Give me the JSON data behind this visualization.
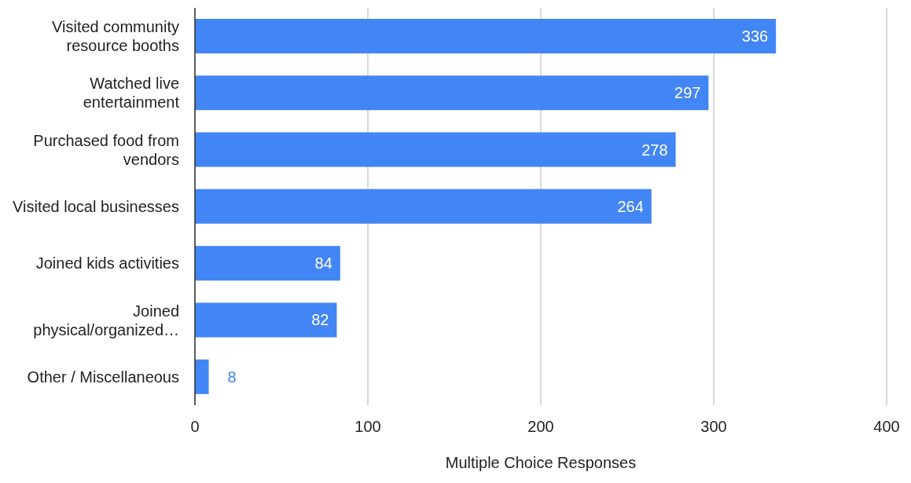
{
  "chart_data": {
    "type": "bar",
    "orientation": "horizontal",
    "categories": [
      "Visited community resource booths",
      "Watched live entertainment",
      "Purchased food from vendors",
      "Visited local businesses",
      "Joined kids activities",
      "Joined physical/organized…",
      "Other / Miscellaneous"
    ],
    "values": [
      336,
      297,
      278,
      264,
      84,
      82,
      8
    ],
    "color": "#4285f4",
    "xlabel": "Multiple Choice Responses",
    "xlim": [
      0,
      400
    ],
    "xticks": [
      0,
      100,
      200,
      300,
      400
    ],
    "grid": "x",
    "data_labels": true,
    "legend": false
  }
}
